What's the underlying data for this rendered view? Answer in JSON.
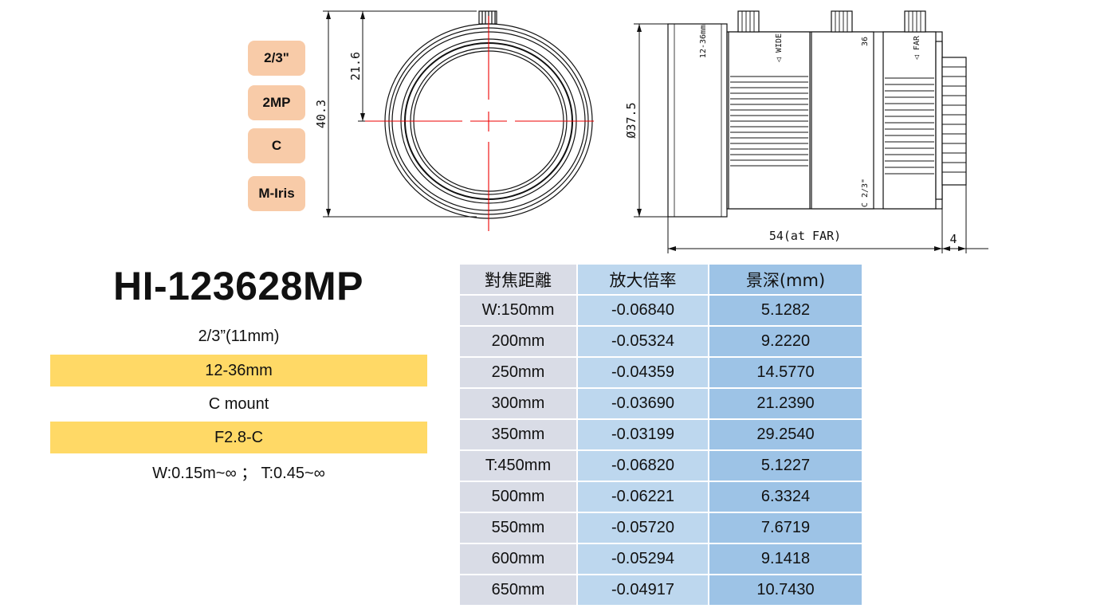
{
  "badges": [
    "2/3\"",
    "2MP",
    "C",
    "M-Iris"
  ],
  "model": "HI-123628MP",
  "specs": [
    "2/3”(11mm)",
    "12-36mm",
    "C mount",
    "F2.8-C",
    "W:0.15m~∞ ； T:0.45~∞"
  ],
  "drawing": {
    "front": {
      "overall_height": "40.3",
      "half_height": "21.6"
    },
    "side": {
      "diameter": "Ø37.5",
      "length": "54(at FAR)",
      "back_length": "4",
      "ring_focal": "12-36mm",
      "ring_wide": "◁ WIDE",
      "ring_far": "◁ FAR",
      "ring_iris": "C 2/3\"",
      "ring_focal_end": "36"
    }
  },
  "table": {
    "headers": [
      "對焦距離",
      "放大倍率",
      "景深(mm)"
    ],
    "rows": [
      [
        "W:150mm",
        "-0.06840",
        "5.1282"
      ],
      [
        "200mm",
        "-0.05324",
        "9.2220"
      ],
      [
        "250mm",
        "-0.04359",
        "14.5770"
      ],
      [
        "300mm",
        "-0.03690",
        "21.2390"
      ],
      [
        "350mm",
        "-0.03199",
        "29.2540"
      ],
      [
        "T:450mm",
        "-0.06820",
        "5.1227"
      ],
      [
        "500mm",
        "-0.06221",
        "6.3324"
      ],
      [
        "550mm",
        "-0.05720",
        "7.6719"
      ],
      [
        "600mm",
        "-0.05294",
        "9.1418"
      ],
      [
        "650mm",
        "-0.04917",
        "10.7430"
      ]
    ]
  }
}
